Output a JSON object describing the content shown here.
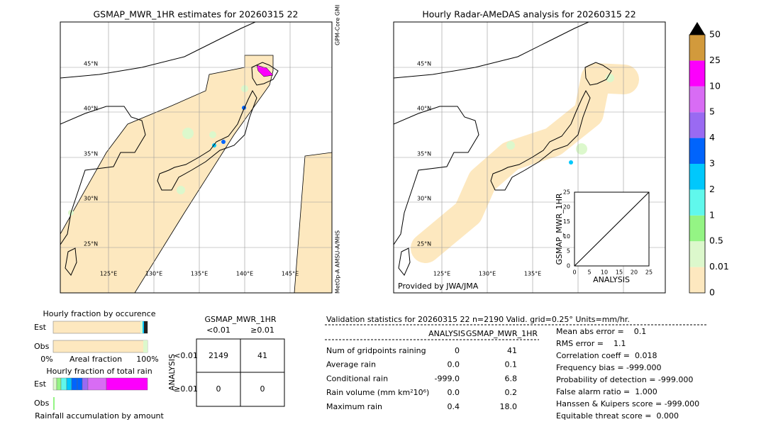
{
  "left_map": {
    "title": "GSMAP_MWR_1HR estimates for 20260315 22",
    "lat_labels": [
      "45°N",
      "40°N",
      "35°N",
      "30°N",
      "25°N"
    ],
    "lon_labels": [
      "125°E",
      "130°E",
      "135°E",
      "140°E",
      "145°E"
    ],
    "sensor_top": "GPM-Core GMI",
    "sensor_bottom": "MetOp-A AMSU-A/MHS"
  },
  "right_map": {
    "title": "Hourly Radar-AMeDAS analysis for 20260315 22",
    "lat_labels": [
      "45°N",
      "40°N",
      "35°N",
      "30°N",
      "25°N"
    ],
    "lon_labels": [
      "125°E",
      "130°E",
      "135°E"
    ],
    "credit": "Provided by JWA/JMA"
  },
  "inset": {
    "y_label": "GSMAP_MWR_1HR",
    "x_label": "ANALYSIS",
    "ticks": [
      "0",
      "5",
      "10",
      "15",
      "20",
      "25"
    ]
  },
  "colorbar": {
    "labels": [
      "0",
      "0.01",
      "0.5",
      "1",
      "2",
      "3",
      "4",
      "5",
      "10",
      "25",
      "50"
    ],
    "colors": [
      "#fde8bf",
      "#dcf8cc",
      "#94f484",
      "#60f8ec",
      "#00c8fc",
      "#0064fc",
      "#9a6af2",
      "#d86cf4",
      "#fc00fc",
      "#d29a3c"
    ]
  },
  "fraction_occurrence": {
    "title": "Hourly fraction by occurence",
    "rows": [
      "Est",
      "Obs"
    ],
    "axis": [
      "0%",
      "Areal fraction",
      "100%"
    ]
  },
  "fraction_total": {
    "title": "Hourly fraction of total rain",
    "rows": [
      "Est",
      "Obs"
    ],
    "footer": "Rainfall accumulation by amount"
  },
  "contingency": {
    "title": "GSMAP_MWR_1HR",
    "col_headers": [
      "<0.01",
      "≥0.01"
    ],
    "row_axis": "ANALYSIS",
    "row_headers": [
      "<0.01",
      "≥0.01"
    ],
    "cells": [
      [
        "2149",
        "41"
      ],
      [
        "0",
        "0"
      ]
    ]
  },
  "validation": {
    "header": "Validation statistics for 20260315 22  n=2190 Valid. grid=0.25° Units=mm/hr.",
    "columns": [
      "ANALYSIS",
      "GSMAP_MWR_1HR"
    ],
    "rows": [
      [
        "Num of gridpoints raining",
        "0",
        "41"
      ],
      [
        "Average rain",
        "0.0",
        "0.1"
      ],
      [
        "Conditional rain",
        "-999.0",
        "6.8"
      ],
      [
        "Rain volume (mm km²10⁶)",
        "0.0",
        "0.2"
      ],
      [
        "Maximum rain",
        "0.4",
        "18.0"
      ]
    ],
    "scores": [
      "Mean abs error =    0.1",
      "RMS error =    1.1",
      "Correlation coeff =  0.018",
      "Frequency bias = -999.000",
      "Probability of detection = -999.000",
      "False alarm ratio =  1.000",
      "Hanssen & Kuipers score = -999.000",
      "Equitable threat score =  0.000"
    ]
  }
}
